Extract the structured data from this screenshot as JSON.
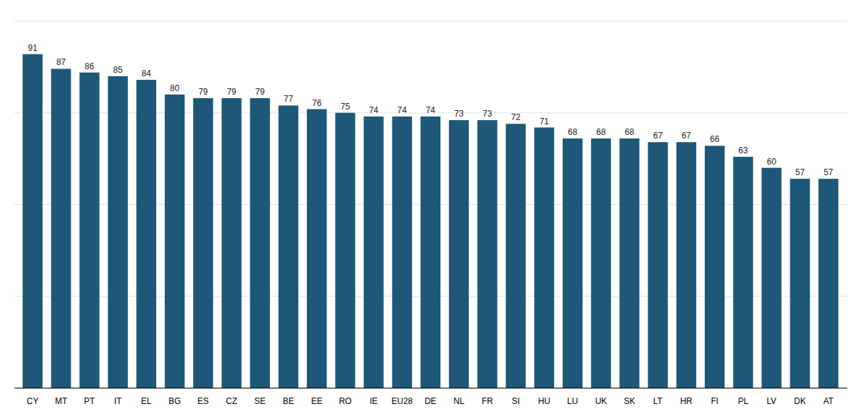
{
  "chart_data": {
    "type": "bar",
    "categories": [
      "CY",
      "MT",
      "PT",
      "IT",
      "EL",
      "BG",
      "ES",
      "CZ",
      "SE",
      "BE",
      "EE",
      "RO",
      "IE",
      "EU28",
      "DE",
      "NL",
      "FR",
      "SI",
      "HU",
      "LU",
      "UK",
      "SK",
      "LT",
      "HR",
      "FI",
      "PL",
      "LV",
      "DK",
      "AT"
    ],
    "values": [
      91,
      87,
      86,
      85,
      84,
      80,
      79,
      79,
      79,
      77,
      76,
      75,
      74,
      74,
      74,
      73,
      73,
      72,
      71,
      68,
      68,
      68,
      67,
      67,
      66,
      63,
      60,
      57,
      57
    ],
    "color": "#1e5778",
    "ylim": [
      0,
      100
    ],
    "yticks": [
      0,
      25,
      50,
      75,
      100
    ],
    "grid": true,
    "data_labels": true,
    "tick_labels": "x"
  }
}
